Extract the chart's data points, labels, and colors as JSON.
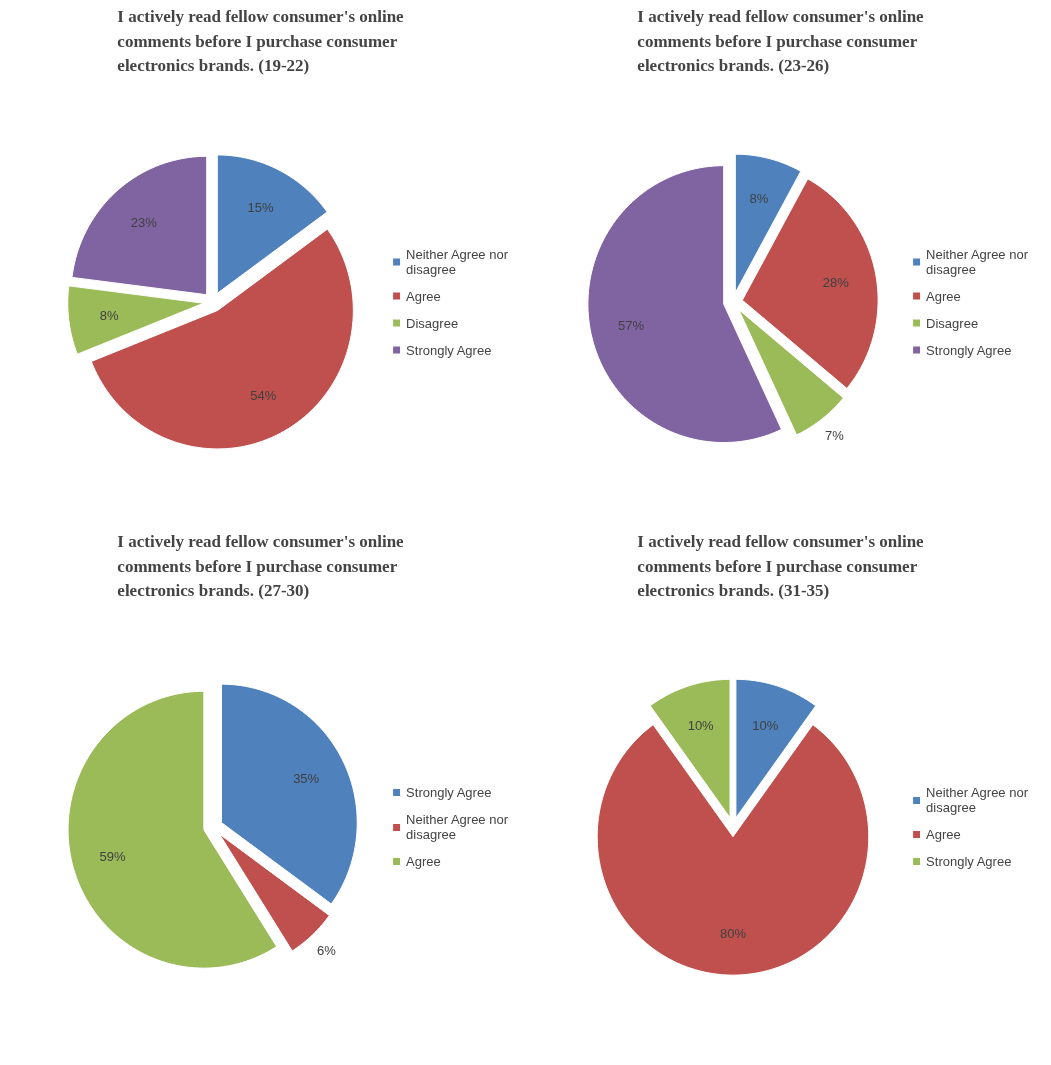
{
  "chart_data": [
    {
      "type": "pie",
      "title": "I actively read fellow consumer's online comments before I purchase consumer electronics brands. (19-22)",
      "categories": [
        "Neither Agree nor disagree",
        "Agree",
        "Disagree",
        "Strongly Agree"
      ],
      "values": [
        15,
        54,
        8,
        23
      ],
      "colors": [
        "#4f81bd",
        "#c0504d",
        "#9bbb59",
        "#8064a2"
      ],
      "value_labels": [
        "15%",
        "54%",
        "8%",
        "23%"
      ],
      "legend": "right"
    },
    {
      "type": "pie",
      "title": "I actively read fellow consumer's online comments before I purchase consumer electronics brands. (23-26)",
      "categories": [
        "Neither Agree nor disagree",
        "Agree",
        "Disagree",
        "Strongly Agree"
      ],
      "values": [
        8,
        28,
        7,
        57
      ],
      "colors": [
        "#4f81bd",
        "#c0504d",
        "#9bbb59",
        "#8064a2"
      ],
      "value_labels": [
        "8%",
        "28%",
        "7%",
        "57%"
      ],
      "legend": "right"
    },
    {
      "type": "pie",
      "title": "I actively read fellow consumer's online comments before I purchase consumer electronics brands. (27-30)",
      "categories": [
        "Strongly Agree",
        "Neither Agree nor disagree",
        "Agree"
      ],
      "values": [
        35,
        6,
        59
      ],
      "colors": [
        "#4f81bd",
        "#c0504d",
        "#9bbb59"
      ],
      "value_labels": [
        "35%",
        "6%",
        "59%"
      ],
      "legend": "right"
    },
    {
      "type": "pie",
      "title": "I actively read fellow consumer's online comments before I purchase consumer electronics brands. (31-35)",
      "categories": [
        "Neither Agree nor disagree",
        "Agree",
        "Strongly Agree"
      ],
      "values": [
        10,
        80,
        10
      ],
      "colors": [
        "#4f81bd",
        "#c0504d",
        "#9bbb59"
      ],
      "value_labels": [
        "10%",
        "80%",
        "10%"
      ],
      "legend": "right"
    }
  ]
}
